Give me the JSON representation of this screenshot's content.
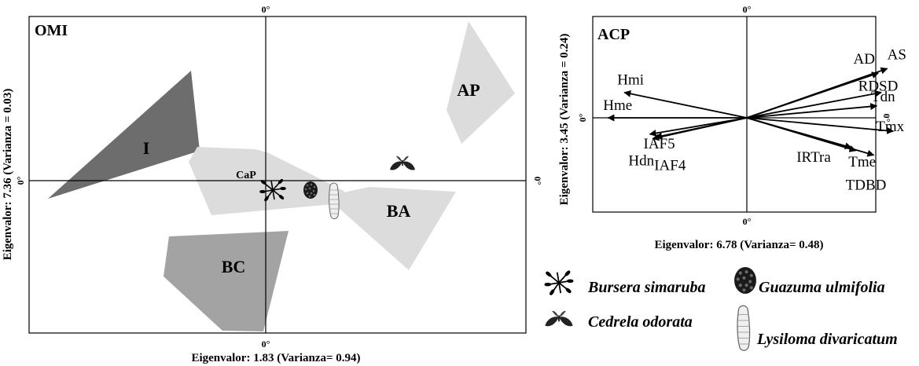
{
  "chart_data": [
    {
      "type": "scatter",
      "panel_label": "OMI",
      "xlabel": "Eigenvalor: 1.83 (Varianza= 0.94)",
      "ylabel": "Eigenvalor: 7.36 (Varianza = 0.03)",
      "axis_zero_label": "0°",
      "regions": [
        {
          "name": "I",
          "color": "#6d6d6d"
        },
        {
          "name": "CaP",
          "color": "#dcdcdc"
        },
        {
          "name": "BA",
          "color": "#dcdcdc"
        },
        {
          "name": "AP",
          "color": "#dcdcdc"
        },
        {
          "name": "BC",
          "color": "#a3a3a3"
        }
      ],
      "species_points": [
        {
          "name": "Bursera simaruba",
          "icon": "leaf-cluster-icon",
          "x": 0.03,
          "y": -0.06
        },
        {
          "name": "Guazuma ulmifolia",
          "icon": "fruit-icon",
          "x": 0.19,
          "y": -0.06
        },
        {
          "name": "Lysiloma divaricatum",
          "icon": "pod-icon",
          "x": 0.29,
          "y": -0.13
        },
        {
          "name": "Cedrela odorata",
          "icon": "leaf-icon",
          "x": 0.58,
          "y": 0.11
        }
      ]
    },
    {
      "type": "biplot",
      "panel_label": "ACP",
      "xlabel": "Eigenvalor: 6.78 (Varianza= 0.48)",
      "ylabel": "Eigenvalor: 3.45 (Varianza = 0.24)",
      "axis_zero_label": "0°",
      "vectors": [
        {
          "label": "Hmi",
          "x": -0.82,
          "y": 0.17
        },
        {
          "label": "Hme",
          "x": -0.93,
          "y": 0.0
        },
        {
          "label": "IAF5",
          "x": -0.65,
          "y": -0.11
        },
        {
          "label": "Hdn",
          "x": -0.61,
          "y": -0.13
        },
        {
          "label": "IAF4",
          "x": -0.63,
          "y": -0.14
        },
        {
          "label": "AD",
          "x": 0.88,
          "y": 0.3
        },
        {
          "label": "AS",
          "x": 0.94,
          "y": 0.33
        },
        {
          "label": "RDSD",
          "x": 0.9,
          "y": 0.17
        },
        {
          "label": "Tdn",
          "x": 0.87,
          "y": 0.08
        },
        {
          "label": "Tmx",
          "x": 0.98,
          "y": -0.09
        },
        {
          "label": "IRTra",
          "x": 0.7,
          "y": -0.2
        },
        {
          "label": "Tme",
          "x": 0.73,
          "y": -0.22
        },
        {
          "label": "TDBD",
          "x": 0.85,
          "y": -0.25
        }
      ]
    }
  ],
  "legend": [
    {
      "name": "Bursera simaruba",
      "icon": "leaf-cluster-icon"
    },
    {
      "name": "Guazuma ulmifolia",
      "icon": "fruit-icon"
    },
    {
      "name": "Cedrela odorata",
      "icon": "leaf-icon"
    },
    {
      "name": "Lysiloma divaricatum",
      "icon": "pod-icon"
    }
  ]
}
